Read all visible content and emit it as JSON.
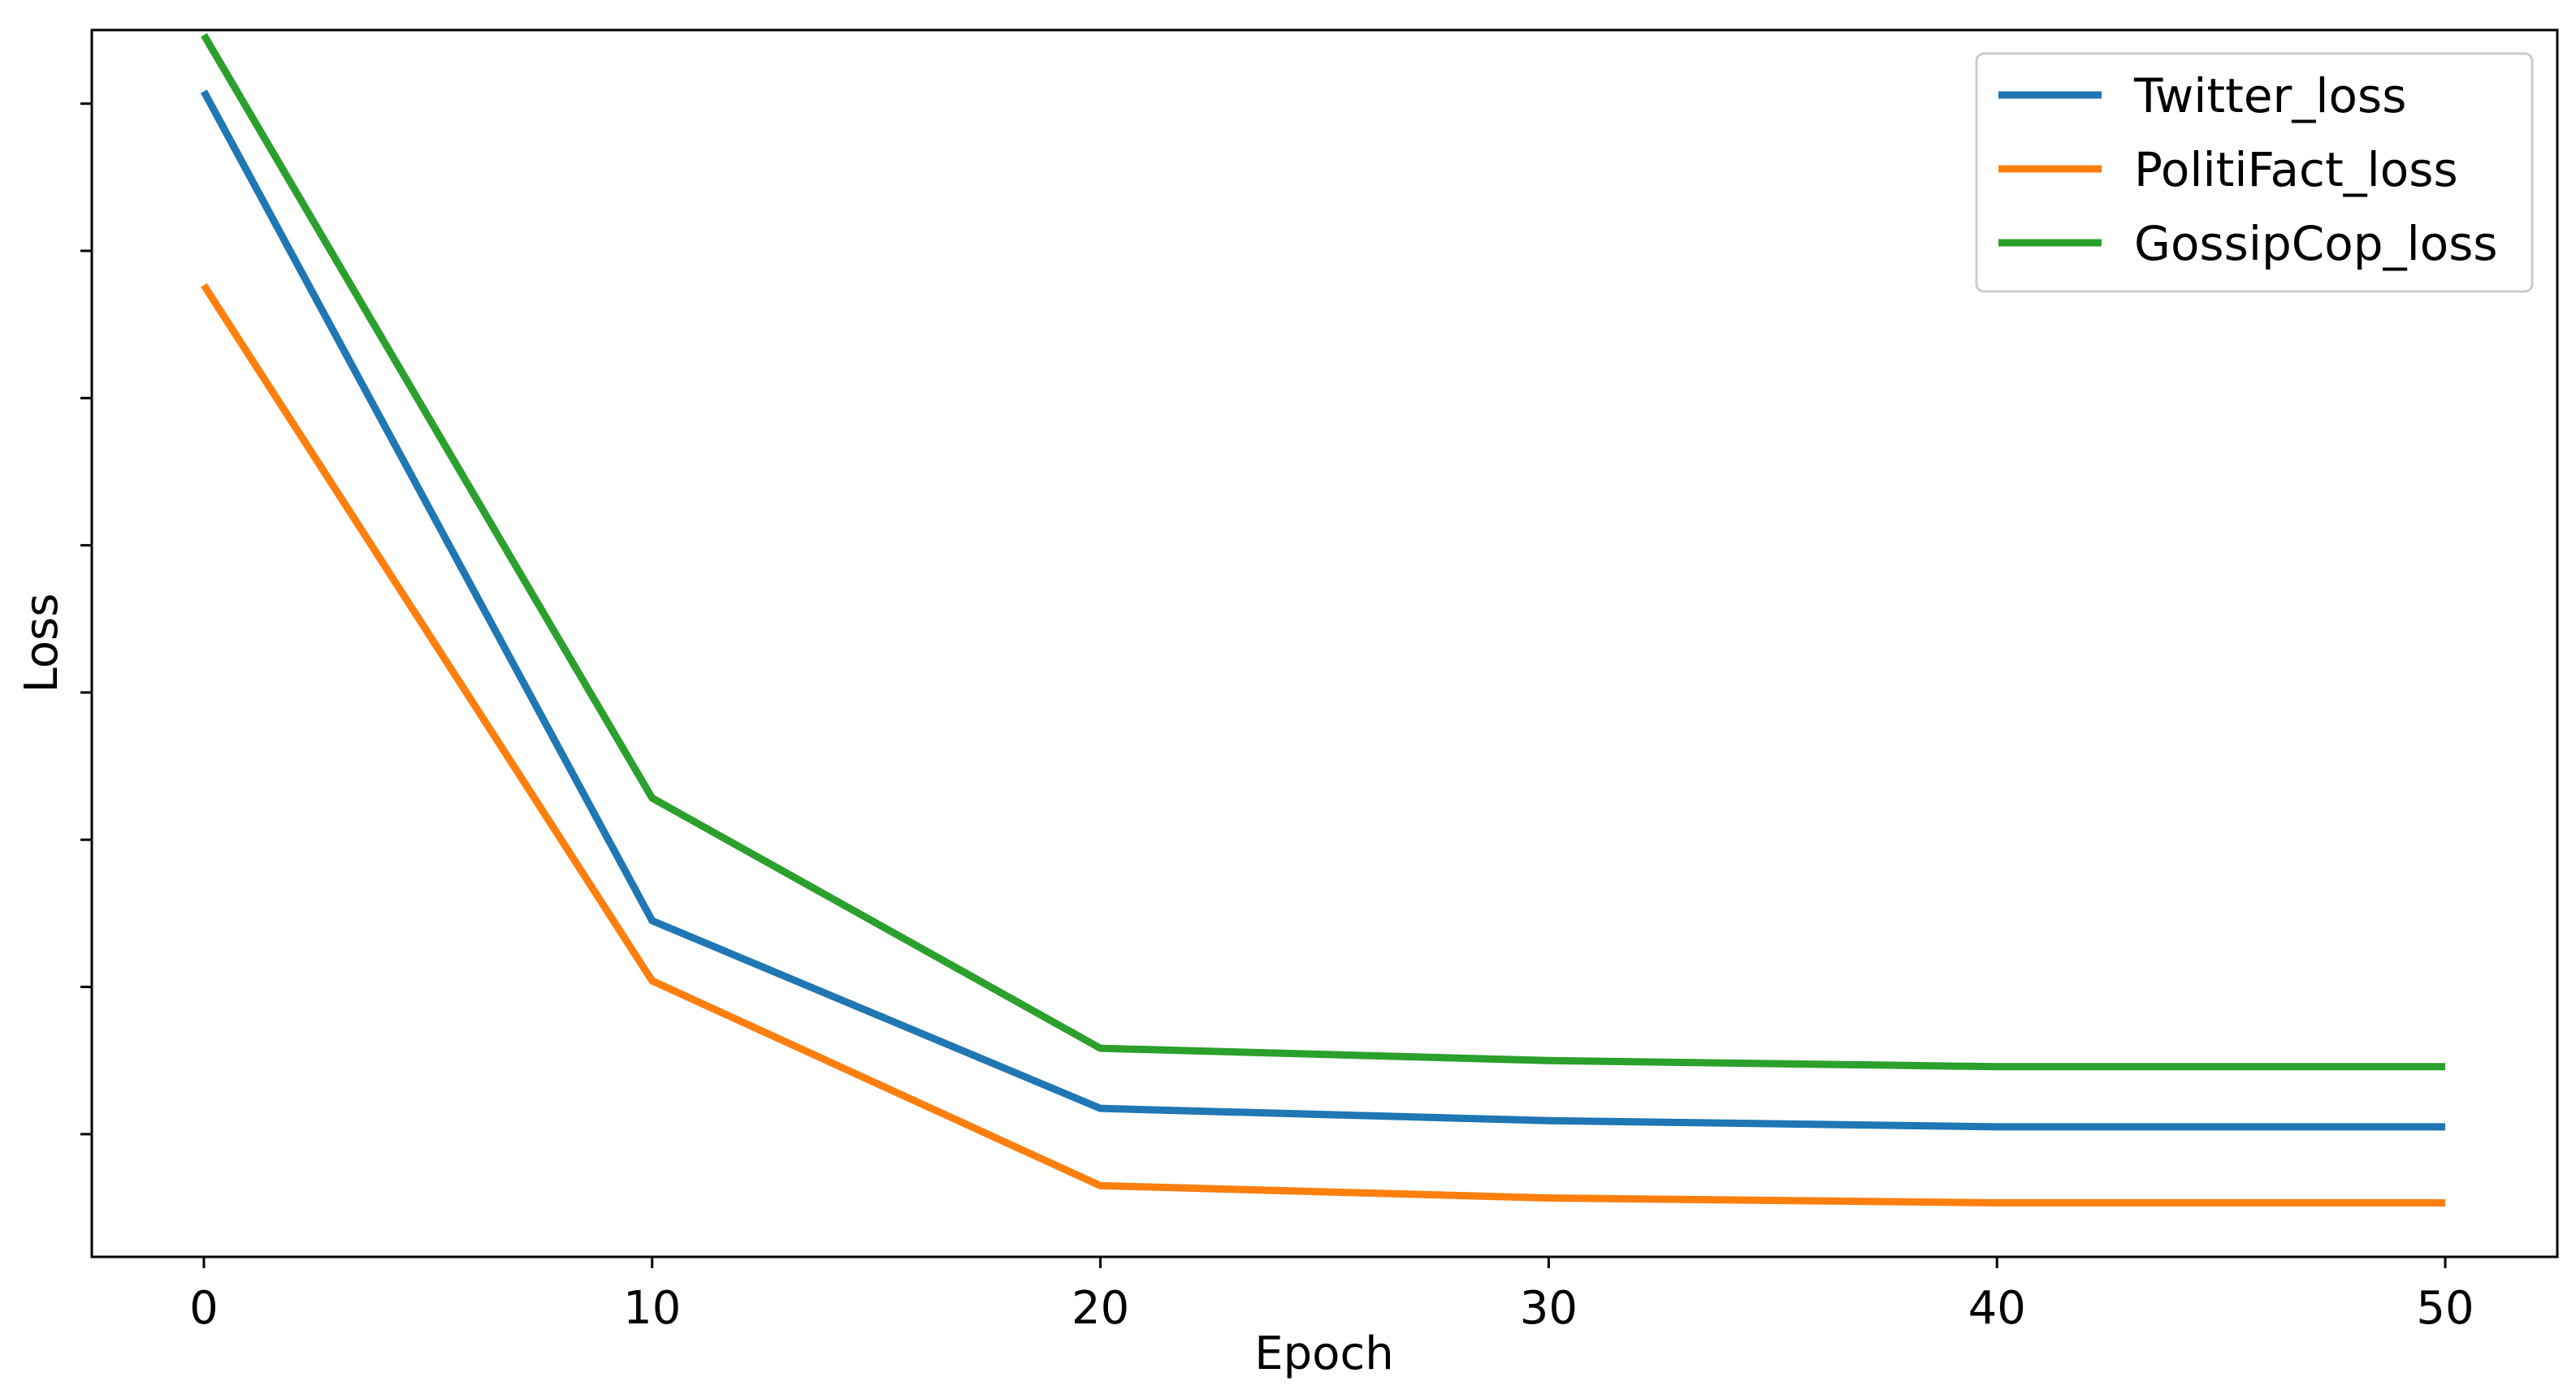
{
  "chart_data": {
    "type": "line",
    "title": "",
    "xlabel": "Epoch",
    "ylabel": "Loss",
    "x": [
      0,
      10,
      20,
      30,
      40,
      50
    ],
    "xticks": [
      0,
      10,
      20,
      30,
      40,
      50
    ],
    "xlim": [
      -2.5,
      52.5
    ],
    "ylim": [
      0,
      1
    ],
    "yticks": [
      0.1,
      0.22,
      0.34,
      0.46,
      0.58,
      0.7,
      0.82,
      0.94
    ],
    "ytick_labels_visible": false,
    "grid": false,
    "legend": "top-right",
    "series": [
      {
        "name": "Twitter_loss",
        "color": "#1f77b4",
        "values": [
          0.95,
          0.274,
          0.121,
          0.111,
          0.106,
          0.106
        ]
      },
      {
        "name": "PolitiFact_loss",
        "color": "#ff7f0e",
        "values": [
          0.792,
          0.225,
          0.058,
          0.048,
          0.044,
          0.044
        ]
      },
      {
        "name": "GossipCop_loss",
        "color": "#2ca02c",
        "values": [
          0.996,
          0.374,
          0.17,
          0.16,
          0.155,
          0.155
        ]
      }
    ]
  }
}
